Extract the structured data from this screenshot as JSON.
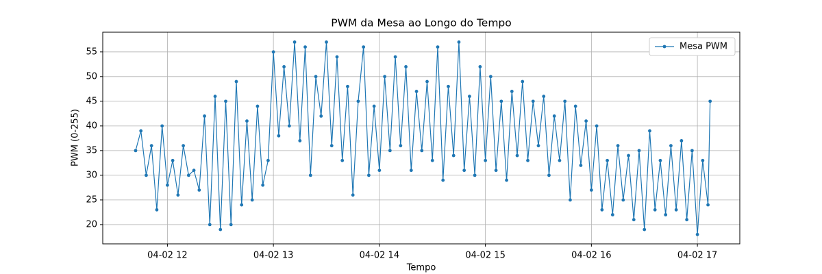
{
  "chart_data": {
    "type": "line",
    "title": "PWM da Mesa ao Longo do Tempo",
    "xlabel": "Tempo",
    "ylabel": "PWM (0-255)",
    "x": [
      11.7,
      11.75,
      11.8,
      11.85,
      11.9,
      11.95,
      12,
      12.05,
      12.1,
      12.15,
      12.2,
      12.25,
      12.3,
      12.35,
      12.4,
      12.45,
      12.5,
      12.55,
      12.6,
      12.65,
      12.7,
      12.75,
      12.8,
      12.85,
      12.9,
      12.95,
      13,
      13.05,
      13.1,
      13.15,
      13.2,
      13.25,
      13.3,
      13.35,
      13.4,
      13.45,
      13.5,
      13.55,
      13.6,
      13.65,
      13.7,
      13.75,
      13.8,
      13.85,
      13.9,
      13.95,
      14,
      14.05,
      14.1,
      14.15,
      14.2,
      14.25,
      14.3,
      14.35,
      14.4,
      14.45,
      14.5,
      14.55,
      14.6,
      14.65,
      14.7,
      14.75,
      14.8,
      14.85,
      14.9,
      14.95,
      15,
      15.05,
      15.1,
      15.15,
      15.2,
      15.25,
      15.3,
      15.35,
      15.4,
      15.45,
      15.5,
      15.55,
      15.6,
      15.65,
      15.7,
      15.75,
      15.8,
      15.85,
      15.9,
      15.95,
      16,
      16.05,
      16.1,
      16.15,
      16.2,
      16.25,
      16.3,
      16.35,
      16.4,
      16.45,
      16.5,
      16.55,
      16.6,
      16.65,
      16.7,
      16.75,
      16.8,
      16.85,
      16.9,
      16.95,
      17,
      17.05,
      17.1,
      17.12
    ],
    "series": [
      {
        "name": "Mesa PWM",
        "color": "#1f77b4",
        "values": [
          35,
          39,
          30,
          36,
          23,
          40,
          28,
          33,
          26,
          36,
          30,
          31,
          27,
          42,
          20,
          46,
          19,
          45,
          20,
          49,
          24,
          41,
          25,
          44,
          28,
          33,
          55,
          38,
          52,
          40,
          57,
          37,
          56,
          30,
          50,
          42,
          57,
          36,
          54,
          33,
          48,
          26,
          45,
          56,
          30,
          44,
          31,
          50,
          35,
          54,
          36,
          52,
          31,
          47,
          35,
          49,
          33,
          56,
          29,
          48,
          34,
          57,
          31,
          46,
          30,
          52,
          33,
          50,
          31,
          45,
          29,
          47,
          34,
          49,
          33,
          45,
          36,
          46,
          30,
          42,
          33,
          45,
          25,
          44,
          32,
          41,
          27,
          40,
          23,
          33,
          22,
          36,
          25,
          34,
          21,
          35,
          19,
          39,
          23,
          33,
          22,
          36,
          23,
          37,
          21,
          35,
          18,
          33,
          24,
          45
        ]
      }
    ],
    "xlim": [
      11.39,
      17.4
    ],
    "ylim": [
      16.1,
      59.0
    ],
    "xticks": [
      {
        "value": 12,
        "label": "04-02 12"
      },
      {
        "value": 13,
        "label": "04-02 13"
      },
      {
        "value": 14,
        "label": "04-02 14"
      },
      {
        "value": 15,
        "label": "04-02 15"
      },
      {
        "value": 16,
        "label": "04-02 16"
      },
      {
        "value": 17,
        "label": "04-02 17"
      }
    ],
    "yticks": [
      20,
      25,
      30,
      35,
      40,
      45,
      50,
      55
    ],
    "grid": true,
    "legend": "upper right"
  }
}
